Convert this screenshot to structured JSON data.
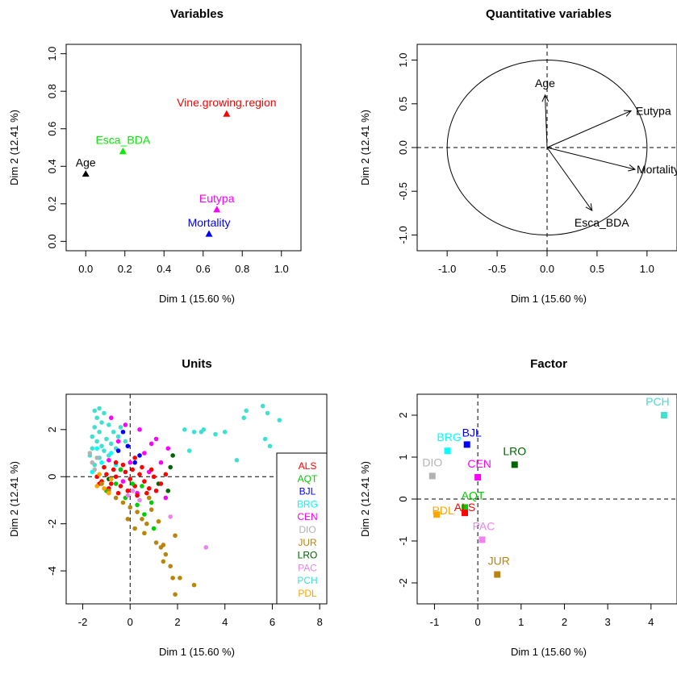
{
  "colors": {
    "ALS": "#ff0000",
    "AQT": "#00cd00",
    "BJL": "#0000ff",
    "BRG": "#00ffff",
    "CEN": "#ff00ff",
    "DIO": "#b3b3b3",
    "JUR": "#b8860b",
    "LRO": "#006400",
    "PAC": "#ee82ee",
    "PCH": "#40e0d0",
    "PDL": "#ffa500"
  },
  "chart_data": [
    {
      "id": "variables",
      "type": "scatter",
      "title": "Variables",
      "xlabel": "Dim 1 (15.60 %)",
      "ylabel": "Dim 2 (12.41 %)",
      "xlim": [
        -0.1,
        1.1
      ],
      "ylim": [
        -0.05,
        1.05
      ],
      "xticks": [
        "0.0",
        "0.2",
        "0.4",
        "0.6",
        "0.8",
        "1.0"
      ],
      "yticks": [
        "0.0",
        "0.2",
        "0.4",
        "0.6",
        "0.8",
        "1.0"
      ],
      "points": [
        {
          "label": "Vine.growing.region",
          "x": 0.72,
          "y": 0.68,
          "color": "#ff0000"
        },
        {
          "label": "Esca_BDA",
          "x": 0.19,
          "y": 0.48,
          "color": "#00ee00"
        },
        {
          "label": "Age",
          "x": 0.0,
          "y": 0.36,
          "color": "#000000"
        },
        {
          "label": "Eutypa",
          "x": 0.67,
          "y": 0.17,
          "color": "#ff00ff"
        },
        {
          "label": "Mortality",
          "x": 0.63,
          "y": 0.04,
          "color": "#0000ff"
        }
      ]
    },
    {
      "id": "quantitative",
      "type": "correlation-circle",
      "title": "Quantitative variables",
      "xlabel": "Dim 1 (15.60 %)",
      "ylabel": "Dim 2 (12.41 %)",
      "xlim": [
        -1.3,
        1.3
      ],
      "ylim": [
        -1.18,
        1.18
      ],
      "xticks": [
        "-1.0",
        "-0.5",
        "0.0",
        "0.5",
        "1.0"
      ],
      "yticks": [
        "-1.0",
        "-0.5",
        "0.0",
        "0.5",
        "1.0"
      ],
      "arrows": [
        {
          "label": "Age",
          "x": -0.02,
          "y": 0.6
        },
        {
          "label": "Eutypa",
          "x": 0.84,
          "y": 0.42
        },
        {
          "label": "Mortality",
          "x": 0.88,
          "y": -0.25
        },
        {
          "label": "Esca_BDA",
          "x": 0.45,
          "y": -0.72
        }
      ]
    },
    {
      "id": "units",
      "type": "scatter",
      "title": "Units",
      "xlabel": "Dim 1 (15.60 %)",
      "ylabel": "Dim 2 (12.41 %)",
      "xlim": [
        -2.7,
        8.3
      ],
      "ylim": [
        -5.4,
        3.5
      ],
      "xticks": [
        "-2",
        "0",
        "2",
        "4",
        "6",
        "8"
      ],
      "yticks": [
        "-4",
        "-2",
        "0",
        "2"
      ],
      "legend": [
        "ALS",
        "AQT",
        "BJL",
        "BRG",
        "CEN",
        "DIO",
        "JUR",
        "LRO",
        "PAC",
        "PCH",
        "PDL"
      ],
      "legend_position": "right",
      "points": [
        {
          "g": "PCH",
          "x": -1.5,
          "y": 2.8
        },
        {
          "g": "PCH",
          "x": -1.3,
          "y": 2.9
        },
        {
          "g": "PCH",
          "x": -1.1,
          "y": 2.7
        },
        {
          "g": "PCH",
          "x": -1.4,
          "y": 2.5
        },
        {
          "g": "PCH",
          "x": -1.2,
          "y": 2.3
        },
        {
          "g": "PCH",
          "x": -1.5,
          "y": 2.1
        },
        {
          "g": "PCH",
          "x": -0.9,
          "y": 2.2
        },
        {
          "g": "PCH",
          "x": -1.3,
          "y": 1.9
        },
        {
          "g": "PCH",
          "x": -1.6,
          "y": 1.7
        },
        {
          "g": "PCH",
          "x": -1.0,
          "y": 1.6
        },
        {
          "g": "PCH",
          "x": -1.4,
          "y": 1.5
        },
        {
          "g": "PCH",
          "x": -1.2,
          "y": 1.3
        },
        {
          "g": "PCH",
          "x": -0.8,
          "y": 1.4
        },
        {
          "g": "PCH",
          "x": -1.6,
          "y": 1.2
        },
        {
          "g": "PCH",
          "x": -1.1,
          "y": 1.1
        },
        {
          "g": "PCH",
          "x": -0.7,
          "y": 1.9
        },
        {
          "g": "PCH",
          "x": -0.5,
          "y": 1.7
        },
        {
          "g": "PCH",
          "x": -1.7,
          "y": 0.9
        },
        {
          "g": "PCH",
          "x": -1.3,
          "y": 0.8
        },
        {
          "g": "PCH",
          "x": -0.9,
          "y": 0.9
        },
        {
          "g": "PCH",
          "x": -0.6,
          "y": 1.2
        },
        {
          "g": "PCH",
          "x": -1.5,
          "y": 0.5
        },
        {
          "g": "PCH",
          "x": -1.1,
          "y": 0.4
        },
        {
          "g": "PCH",
          "x": -0.4,
          "y": 2.1
        },
        {
          "g": "PCH",
          "x": -0.2,
          "y": 1.5
        },
        {
          "g": "PCH",
          "x": 2.3,
          "y": 2.0
        },
        {
          "g": "PCH",
          "x": 2.7,
          "y": 1.9
        },
        {
          "g": "PCH",
          "x": 3.1,
          "y": 2.0
        },
        {
          "g": "PCH",
          "x": 3.6,
          "y": 1.8
        },
        {
          "g": "PCH",
          "x": 4.0,
          "y": 1.9
        },
        {
          "g": "PCH",
          "x": 4.8,
          "y": 2.5
        },
        {
          "g": "PCH",
          "x": 4.9,
          "y": 2.8
        },
        {
          "g": "PCH",
          "x": 5.6,
          "y": 3.0
        },
        {
          "g": "PCH",
          "x": 5.8,
          "y": 2.7
        },
        {
          "g": "PCH",
          "x": 6.3,
          "y": 2.4
        },
        {
          "g": "PCH",
          "x": 5.7,
          "y": 1.6
        },
        {
          "g": "PCH",
          "x": 5.9,
          "y": 1.3
        },
        {
          "g": "PCH",
          "x": 4.5,
          "y": 0.7
        },
        {
          "g": "PCH",
          "x": 2.5,
          "y": 1.1
        },
        {
          "g": "PCH",
          "x": 3.0,
          "y": 1.9
        },
        {
          "g": "BRG",
          "x": -1.6,
          "y": 0.2
        },
        {
          "g": "BRG",
          "x": -1.2,
          "y": 0.6
        },
        {
          "g": "BRG",
          "x": -0.8,
          "y": 1.0
        },
        {
          "g": "BRG",
          "x": -1.4,
          "y": 1.2
        },
        {
          "g": "BRG",
          "x": -0.6,
          "y": 0.5
        },
        {
          "g": "BJL",
          "x": -0.3,
          "y": 1.9
        },
        {
          "g": "BJL",
          "x": -0.1,
          "y": 1.3
        },
        {
          "g": "BJL",
          "x": -0.5,
          "y": 1.1
        },
        {
          "g": "BJL",
          "x": 0.2,
          "y": 0.6
        },
        {
          "g": "BJL",
          "x": -0.4,
          "y": 0.3
        },
        {
          "g": "BJL",
          "x": 0.4,
          "y": 0.9
        },
        {
          "g": "CEN",
          "x": -0.8,
          "y": 2.5
        },
        {
          "g": "CEN",
          "x": -0.2,
          "y": 2.2
        },
        {
          "g": "CEN",
          "x": 0.4,
          "y": 2.0
        },
        {
          "g": "CEN",
          "x": 1.1,
          "y": 1.6
        },
        {
          "g": "CEN",
          "x": -0.5,
          "y": 1.5
        },
        {
          "g": "CEN",
          "x": 0.6,
          "y": 1.0
        },
        {
          "g": "CEN",
          "x": -0.9,
          "y": 0.7
        },
        {
          "g": "CEN",
          "x": 0.0,
          "y": 0.6
        },
        {
          "g": "CEN",
          "x": 1.3,
          "y": 0.6
        },
        {
          "g": "CEN",
          "x": 0.8,
          "y": 0.2
        },
        {
          "g": "CEN",
          "x": -0.3,
          "y": -0.2
        },
        {
          "g": "CEN",
          "x": 1.5,
          "y": -0.9
        },
        {
          "g": "CEN",
          "x": 0.3,
          "y": -0.7
        },
        {
          "g": "CEN",
          "x": 1.6,
          "y": 1.2
        },
        {
          "g": "CEN",
          "x": 0.9,
          "y": 1.4
        },
        {
          "g": "DIO",
          "x": -1.7,
          "y": 1.0
        },
        {
          "g": "DIO",
          "x": -1.4,
          "y": 0.8
        },
        {
          "g": "DIO",
          "x": -1.5,
          "y": 0.3
        },
        {
          "g": "DIO",
          "x": -1.6,
          "y": 0.6
        },
        {
          "g": "LRO",
          "x": 1.8,
          "y": 0.9
        },
        {
          "g": "LRO",
          "x": 1.7,
          "y": 0.4
        },
        {
          "g": "LRO",
          "x": 1.2,
          "y": -0.3
        },
        {
          "g": "LRO",
          "x": 1.6,
          "y": -0.6
        },
        {
          "g": "LRO",
          "x": -0.9,
          "y": -0.1
        },
        {
          "g": "ALS",
          "x": -1.4,
          "y": 0.0
        },
        {
          "g": "ALS",
          "x": -1.2,
          "y": -0.2
        },
        {
          "g": "ALS",
          "x": -1.0,
          "y": 0.1
        },
        {
          "g": "ALS",
          "x": -0.8,
          "y": -0.3
        },
        {
          "g": "ALS",
          "x": -0.6,
          "y": 0.0
        },
        {
          "g": "ALS",
          "x": -0.4,
          "y": -0.4
        },
        {
          "g": "ALS",
          "x": -0.2,
          "y": 0.2
        },
        {
          "g": "ALS",
          "x": 0.0,
          "y": -0.1
        },
        {
          "g": "ALS",
          "x": 0.2,
          "y": -0.4
        },
        {
          "g": "ALS",
          "x": 0.4,
          "y": 0.1
        },
        {
          "g": "ALS",
          "x": 0.6,
          "y": -0.2
        },
        {
          "g": "ALS",
          "x": 0.8,
          "y": -0.5
        },
        {
          "g": "ALS",
          "x": 1.0,
          "y": 0.0
        },
        {
          "g": "ALS",
          "x": 1.3,
          "y": -0.3
        },
        {
          "g": "ALS",
          "x": -1.1,
          "y": 0.4
        },
        {
          "g": "ALS",
          "x": -0.7,
          "y": 0.3
        },
        {
          "g": "ALS",
          "x": -0.3,
          "y": 0.5
        },
        {
          "g": "ALS",
          "x": 0.1,
          "y": 0.3
        },
        {
          "g": "ALS",
          "x": 0.5,
          "y": 0.4
        },
        {
          "g": "ALS",
          "x": 0.9,
          "y": 0.3
        },
        {
          "g": "ALS",
          "x": -0.9,
          "y": -0.5
        },
        {
          "g": "ALS",
          "x": -0.5,
          "y": -0.7
        },
        {
          "g": "ALS",
          "x": -0.1,
          "y": -0.6
        },
        {
          "g": "ALS",
          "x": 0.3,
          "y": -0.8
        },
        {
          "g": "ALS",
          "x": 0.7,
          "y": -0.7
        },
        {
          "g": "ALS",
          "x": 1.1,
          "y": -0.6
        },
        {
          "g": "ALS",
          "x": -1.3,
          "y": -0.3
        },
        {
          "g": "ALS",
          "x": 1.5,
          "y": 0.1
        },
        {
          "g": "ALS",
          "x": -0.6,
          "y": 0.6
        },
        {
          "g": "ALS",
          "x": 0.2,
          "y": 0.8
        },
        {
          "g": "AQT",
          "x": -1.0,
          "y": -0.6
        },
        {
          "g": "AQT",
          "x": -0.6,
          "y": -0.3
        },
        {
          "g": "AQT",
          "x": -0.2,
          "y": -0.9
        },
        {
          "g": "AQT",
          "x": 0.3,
          "y": -1.2
        },
        {
          "g": "AQT",
          "x": 0.6,
          "y": -1.6
        },
        {
          "g": "AQT",
          "x": -0.4,
          "y": 0.3
        },
        {
          "g": "AQT",
          "x": 0.1,
          "y": -0.3
        },
        {
          "g": "AQT",
          "x": 0.9,
          "y": -1.1
        },
        {
          "g": "AQT",
          "x": 1.0,
          "y": -2.2
        },
        {
          "g": "AQT",
          "x": 0.5,
          "y": -0.4
        },
        {
          "g": "JUR",
          "x": -1.2,
          "y": -0.3
        },
        {
          "g": "JUR",
          "x": -0.9,
          "y": -0.6
        },
        {
          "g": "JUR",
          "x": -0.6,
          "y": -0.9
        },
        {
          "g": "JUR",
          "x": -0.3,
          "y": -1.1
        },
        {
          "g": "JUR",
          "x": 0.0,
          "y": -1.3
        },
        {
          "g": "JUR",
          "x": 0.3,
          "y": -1.5
        },
        {
          "g": "JUR",
          "x": 0.5,
          "y": -1.8
        },
        {
          "g": "JUR",
          "x": 0.7,
          "y": -2.0
        },
        {
          "g": "JUR",
          "x": 0.2,
          "y": -2.2
        },
        {
          "g": "JUR",
          "x": -0.1,
          "y": -1.8
        },
        {
          "g": "JUR",
          "x": 0.9,
          "y": -1.4
        },
        {
          "g": "JUR",
          "x": 1.2,
          "y": -1.9
        },
        {
          "g": "JUR",
          "x": 0.6,
          "y": -2.4
        },
        {
          "g": "JUR",
          "x": 1.1,
          "y": -2.8
        },
        {
          "g": "JUR",
          "x": 1.3,
          "y": -3.0
        },
        {
          "g": "JUR",
          "x": 1.5,
          "y": -3.3
        },
        {
          "g": "JUR",
          "x": 1.4,
          "y": -3.6
        },
        {
          "g": "JUR",
          "x": 1.7,
          "y": -3.8
        },
        {
          "g": "JUR",
          "x": 1.8,
          "y": -4.3
        },
        {
          "g": "JUR",
          "x": 2.1,
          "y": -4.3
        },
        {
          "g": "JUR",
          "x": 1.9,
          "y": -5.0
        },
        {
          "g": "JUR",
          "x": 2.7,
          "y": -4.6
        },
        {
          "g": "JUR",
          "x": 1.9,
          "y": -2.5
        },
        {
          "g": "JUR",
          "x": 1.4,
          "y": -2.9
        },
        {
          "g": "JUR",
          "x": 0.8,
          "y": -0.9
        },
        {
          "g": "PAC",
          "x": 0.1,
          "y": -0.6
        },
        {
          "g": "PAC",
          "x": 0.4,
          "y": -1.0
        },
        {
          "g": "PAC",
          "x": 1.7,
          "y": -1.7
        },
        {
          "g": "PAC",
          "x": 3.2,
          "y": -3.0
        },
        {
          "g": "PAC",
          "x": -0.1,
          "y": -0.8
        },
        {
          "g": "PDL",
          "x": -1.4,
          "y": -0.4
        },
        {
          "g": "PDL",
          "x": -1.1,
          "y": -0.5
        },
        {
          "g": "PDL",
          "x": -0.8,
          "y": -0.1
        },
        {
          "g": "PDL",
          "x": -1.3,
          "y": 0.1
        },
        {
          "g": "PDL",
          "x": -0.9,
          "y": -0.7
        }
      ]
    },
    {
      "id": "factor",
      "type": "scatter",
      "title": "Factor",
      "xlabel": "Dim 1 (15.60 %)",
      "ylabel": "Dim 2 (12.41 %)",
      "xlim": [
        -1.4,
        4.6
      ],
      "ylim": [
        -2.5,
        2.5
      ],
      "xticks": [
        "-1",
        "0",
        "1",
        "2",
        "3",
        "4"
      ],
      "yticks": [
        "-2",
        "-1",
        "0",
        "1",
        "2"
      ],
      "points": [
        {
          "label": "PCH",
          "x": 4.3,
          "y": 2.0
        },
        {
          "label": "BRG",
          "x": -0.7,
          "y": 1.15
        },
        {
          "label": "BJL",
          "x": -0.25,
          "y": 1.3
        },
        {
          "label": "LRO",
          "x": 0.85,
          "y": 0.82
        },
        {
          "label": "DIO",
          "x": -1.05,
          "y": 0.55
        },
        {
          "label": "CEN",
          "x": 0.0,
          "y": 0.52
        },
        {
          "label": "AQT",
          "x": -0.3,
          "y": -0.2
        },
        {
          "label": "PDL",
          "x": -0.95,
          "y": -0.37
        },
        {
          "label": "ALS",
          "x": -0.3,
          "y": -0.33
        },
        {
          "label": "PAC",
          "x": 0.1,
          "y": -0.97
        },
        {
          "label": "JUR",
          "x": 0.45,
          "y": -1.8
        }
      ]
    }
  ]
}
